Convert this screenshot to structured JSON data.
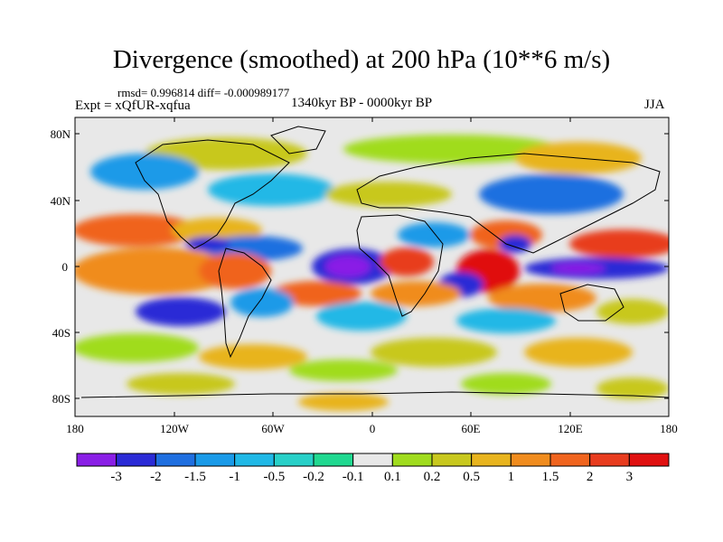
{
  "figure": {
    "title": "Divergence (smoothed) at 200 hPa (10**6 m/s)",
    "stats": "rmsd= 0.996814 diff= -0.000989177",
    "expt": "Expt = xQfUR-xqfua",
    "period": "1340kyr BP - 0000kyr BP",
    "season": "JJA"
  },
  "axes": {
    "lat_labels": [
      "80N",
      "40N",
      "0",
      "40S",
      "80S"
    ],
    "lon_labels": [
      "180",
      "120W",
      "60W",
      "0",
      "60E",
      "120E",
      "180"
    ]
  },
  "colorbar": {
    "labels": [
      "-3",
      "-2",
      "-1.5",
      "-1",
      "-0.5",
      "-0.2",
      "-0.1",
      "0.1",
      "0.2",
      "0.5",
      "1",
      "1.5",
      "2",
      "3"
    ],
    "colors": [
      "#8a1fe6",
      "#2b2bd6",
      "#1f6fe0",
      "#1a9ae8",
      "#20b8e6",
      "#28d0c8",
      "#20d890",
      "#e8e8e8",
      "#a0dc1e",
      "#c8c81e",
      "#e8b41e",
      "#f08c1e",
      "#f0641e",
      "#e83c1e",
      "#e01010"
    ]
  },
  "map_data": {
    "projection": "cylindrical-equidistant",
    "field": "200 hPa divergence difference",
    "units": "10**6 m/s",
    "lon_range": [
      -180,
      180
    ],
    "lat_range": [
      -90,
      90
    ]
  }
}
